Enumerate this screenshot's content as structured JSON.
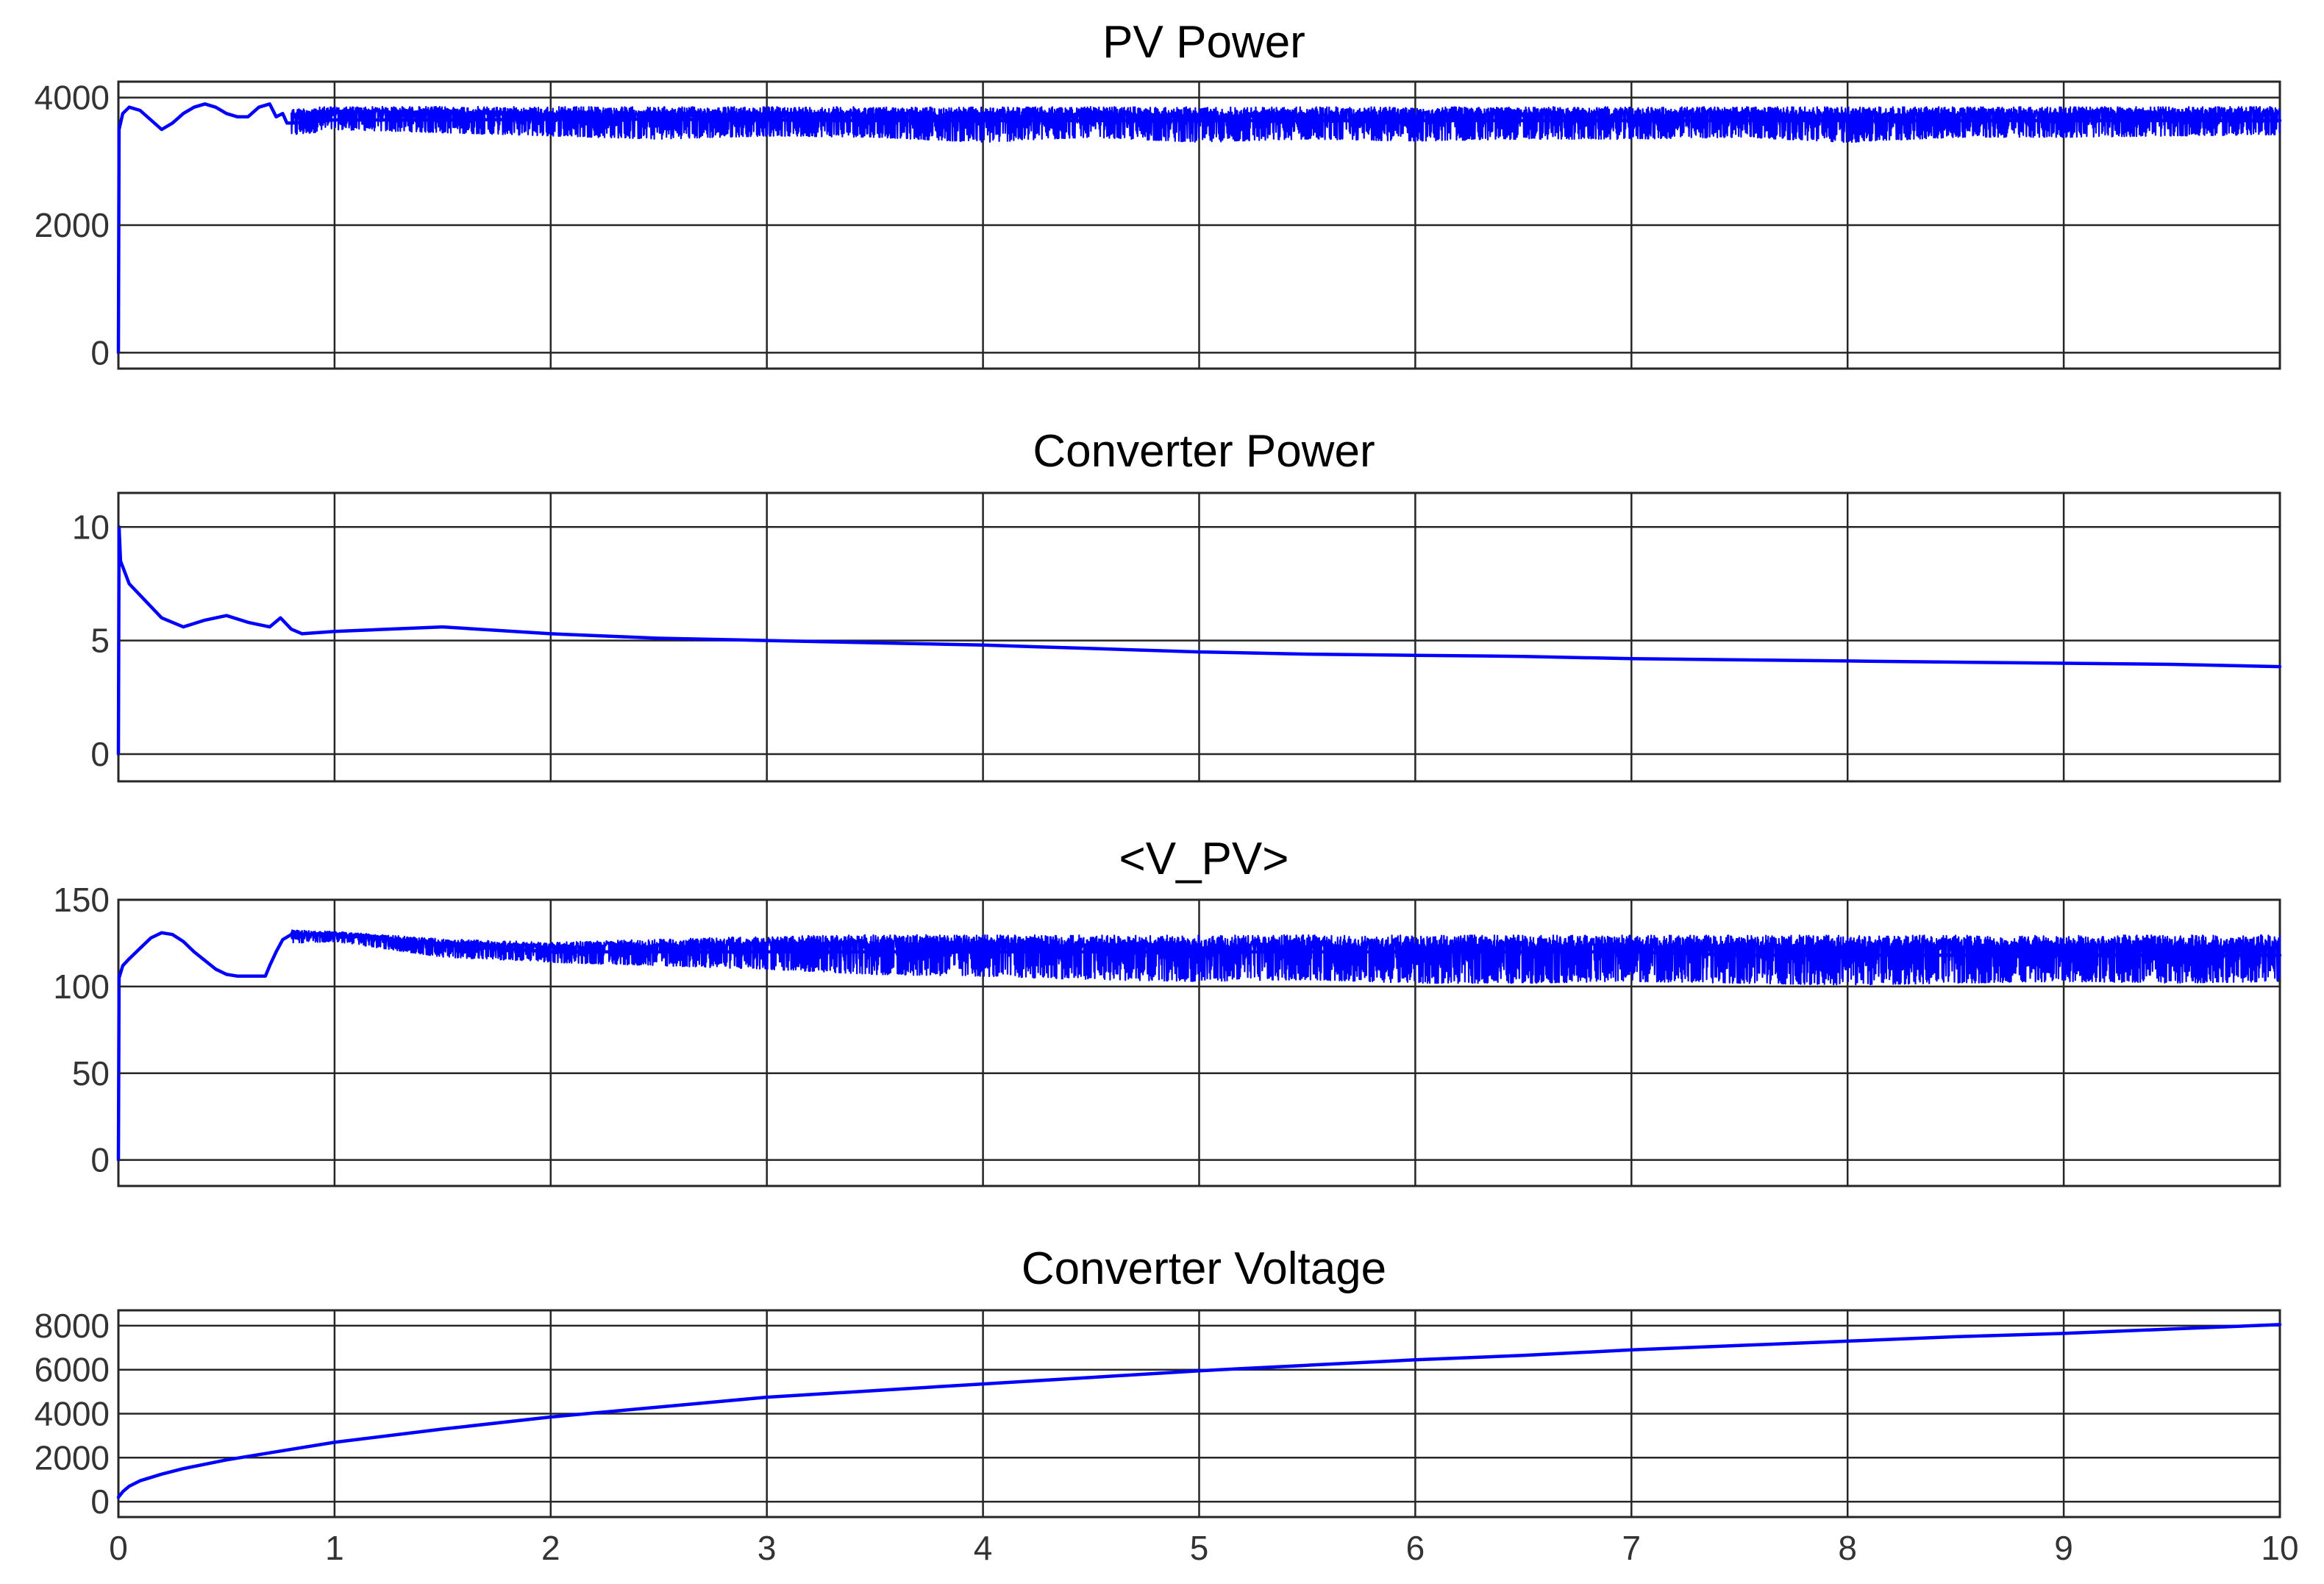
{
  "chart_data": [
    {
      "type": "line",
      "title": "PV  Power",
      "xlim": [
        0,
        10
      ],
      "ylim": [
        -250,
        4250
      ],
      "yticks": [
        0,
        2000,
        4000
      ],
      "xticks": [
        0,
        1,
        2,
        3,
        4,
        5,
        6,
        7,
        8,
        9,
        10
      ],
      "show_xtick_labels": false,
      "grid": true,
      "series": [
        {
          "color": "#0000ff",
          "x": [
            0,
            0.003,
            0.02,
            0.05,
            0.1,
            0.15,
            0.2,
            0.25,
            0.3,
            0.35,
            0.4,
            0.45,
            0.5,
            0.55,
            0.6,
            0.65,
            0.7,
            0.73,
            0.76,
            0.78,
            0.8,
            1,
            1.5,
            2,
            2.5,
            3,
            3.5,
            4,
            4.5,
            5,
            5.5,
            6,
            6.5,
            7,
            7.5,
            8,
            8.5,
            9,
            9.5,
            10
          ],
          "y": [
            0,
            3500,
            3750,
            3850,
            3800,
            3650,
            3500,
            3600,
            3750,
            3850,
            3900,
            3850,
            3750,
            3700,
            3700,
            3850,
            3900,
            3700,
            3750,
            3600,
            3600,
            3650,
            3650,
            3660,
            3660,
            3650,
            3640,
            3640,
            3640,
            3640,
            3640,
            3640,
            3640,
            3640,
            3640,
            3640,
            3640,
            3640,
            3640,
            3640
          ],
          "band": {
            "x": [
              0.8,
              1,
              1.5,
              2,
              2.5,
              3,
              3.5,
              4,
              4.5,
              5,
              5.5,
              6,
              6.5,
              7,
              7.5,
              8,
              8.5,
              9,
              9.5,
              10
            ],
            "lower": [
              3400,
              3500,
              3450,
              3400,
              3350,
              3400,
              3380,
              3300,
              3380,
              3300,
              3350,
              3320,
              3350,
              3350,
              3380,
              3300,
              3380,
              3380,
              3400,
              3420
            ],
            "upper": [
              3850,
              3880,
              3880,
              3880,
              3880,
              3880,
              3880,
              3880,
              3880,
              3880,
              3880,
              3880,
              3880,
              3880,
              3880,
              3880,
              3880,
              3880,
              3880,
              3880
            ]
          }
        }
      ]
    },
    {
      "type": "line",
      "title": "Converter Power",
      "xlim": [
        0,
        10
      ],
      "ylim": [
        -1.2,
        11.5
      ],
      "yticks": [
        0,
        5,
        10
      ],
      "xticks": [
        0,
        1,
        2,
        3,
        4,
        5,
        6,
        7,
        8,
        9,
        10
      ],
      "show_xtick_labels": false,
      "grid": true,
      "series": [
        {
          "color": "#0000ff",
          "x": [
            0,
            0.003,
            0.01,
            0.05,
            0.1,
            0.2,
            0.3,
            0.4,
            0.5,
            0.6,
            0.7,
            0.75,
            0.8,
            0.85,
            1,
            1.5,
            2,
            2.5,
            3,
            3.5,
            4,
            4.5,
            5,
            5.5,
            6,
            6.5,
            7,
            7.5,
            8,
            8.5,
            9,
            9.5,
            10
          ],
          "y": [
            0,
            10,
            8.5,
            7.5,
            7.0,
            6.0,
            5.6,
            5.9,
            6.1,
            5.8,
            5.6,
            6.0,
            5.5,
            5.3,
            5.4,
            5.6,
            5.3,
            5.1,
            5.0,
            4.9,
            4.8,
            4.65,
            4.5,
            4.4,
            4.35,
            4.3,
            4.2,
            4.15,
            4.1,
            4.05,
            4.0,
            3.95,
            3.85
          ]
        }
      ]
    },
    {
      "type": "line",
      "title": "<V_PV>",
      "xlim": [
        0,
        10
      ],
      "ylim": [
        -15,
        150
      ],
      "yticks": [
        0,
        50,
        100,
        150
      ],
      "xticks": [
        0,
        1,
        2,
        3,
        4,
        5,
        6,
        7,
        8,
        9,
        10
      ],
      "show_xtick_labels": false,
      "grid": true,
      "series": [
        {
          "color": "#0000ff",
          "x": [
            0,
            0.003,
            0.02,
            0.05,
            0.1,
            0.15,
            0.2,
            0.25,
            0.3,
            0.35,
            0.4,
            0.45,
            0.5,
            0.55,
            0.6,
            0.65,
            0.68,
            0.7,
            0.73,
            0.76,
            0.8,
            1,
            1.5,
            2,
            2.5,
            3,
            3.5,
            4,
            4.5,
            5,
            5.5,
            6,
            6.5,
            7,
            7.5,
            8,
            8.5,
            9,
            9.5,
            10
          ],
          "y": [
            0,
            105,
            112,
            116,
            122,
            128,
            131,
            130,
            126,
            120,
            115,
            110,
            107,
            106,
            106,
            106,
            106,
            112,
            120,
            127,
            130,
            130,
            124,
            120,
            120,
            120,
            120,
            120,
            120,
            120,
            120,
            120,
            120,
            120,
            118,
            118,
            118,
            118,
            118,
            118
          ],
          "band": {
            "x": [
              0.8,
              1,
              1.5,
              2,
              2.5,
              3,
              3.5,
              4,
              4.5,
              5,
              5.5,
              6,
              6.5,
              7,
              7.5,
              8,
              8.5,
              9,
              9.5,
              10
            ],
            "lower": [
              125,
              126,
              117,
              114,
              112,
              110,
              107,
              106,
              104,
              103,
              104,
              102,
              102,
              103,
              102,
              101,
              102,
              103,
              102,
              103
            ],
            "upper": [
              133,
              132,
              128,
              126,
              128,
              130,
              131,
              131,
              131,
              131,
              131,
              131,
              131,
              131,
              131,
              131,
              131,
              131,
              131,
              131
            ]
          }
        }
      ]
    },
    {
      "type": "line",
      "title": "Converter Voltage",
      "xlim": [
        0,
        10
      ],
      "ylim": [
        -700,
        8700
      ],
      "yticks": [
        0,
        2000,
        4000,
        6000,
        8000
      ],
      "xticks": [
        0,
        1,
        2,
        3,
        4,
        5,
        6,
        7,
        8,
        9,
        10
      ],
      "show_xtick_labels": true,
      "grid": true,
      "series": [
        {
          "color": "#0000ff",
          "x": [
            0,
            0.02,
            0.05,
            0.1,
            0.2,
            0.3,
            0.5,
            0.75,
            1,
            1.5,
            2,
            2.5,
            3,
            3.5,
            4,
            4.5,
            5,
            5.5,
            6,
            6.5,
            7,
            7.5,
            8,
            8.5,
            9,
            9.5,
            10
          ],
          "y": [
            200,
            450,
            700,
            950,
            1250,
            1500,
            1900,
            2300,
            2700,
            3300,
            3850,
            4300,
            4750,
            5050,
            5350,
            5650,
            5950,
            6200,
            6450,
            6650,
            6900,
            7100,
            7300,
            7500,
            7650,
            7850,
            8050
          ]
        }
      ]
    }
  ]
}
